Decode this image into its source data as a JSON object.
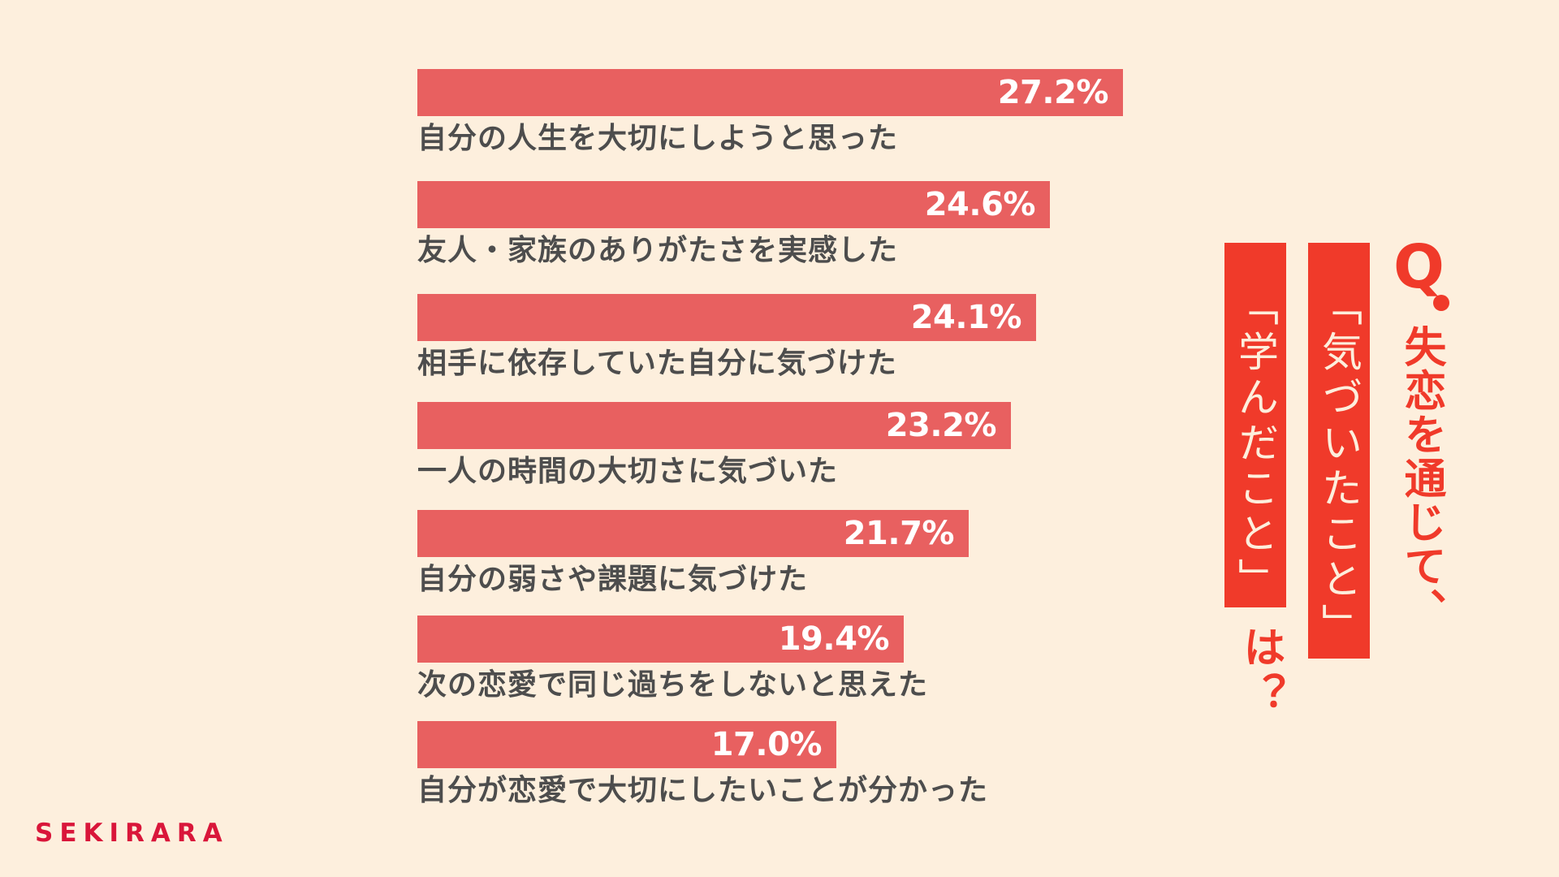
{
  "brand": {
    "logo_text": "SEKIRARA"
  },
  "title": {
    "q_mark": "Q",
    "line1": "失恋を通じて、",
    "highlight1": "「気づいたこと」",
    "highlight2": "「学んだこと」",
    "tail": "は？"
  },
  "colors": {
    "background": "#FDEFDD",
    "bar": "#E86060",
    "accent": "#F03A2A",
    "label_text": "#4D4D4D",
    "logo": "#D9163A"
  },
  "chart_data": {
    "type": "bar",
    "orientation": "horizontal",
    "title": "Q. 失恋を通じて、「気づいたこと」「学んだこと」は？",
    "xlabel": "",
    "ylabel": "",
    "unit": "%",
    "grid": false,
    "legend": null,
    "categories": [
      "自分の人生を大切にしようと思った",
      "友人・家族のありがたさを実感した",
      "相手に依存していた自分に気づけた",
      "一人の時間の大切さに気づいた",
      "自分の弱さや課題に気づけた",
      "次の恋愛で同じ過ちをしないと思えた",
      "自分が恋愛で大切にしたいことが分かった"
    ],
    "values": [
      27.2,
      24.6,
      24.1,
      23.2,
      21.7,
      19.4,
      17.0
    ],
    "value_labels": [
      "27.2%",
      "24.6%",
      "24.1%",
      "23.2%",
      "21.7%",
      "19.4%",
      "17.0%"
    ]
  }
}
